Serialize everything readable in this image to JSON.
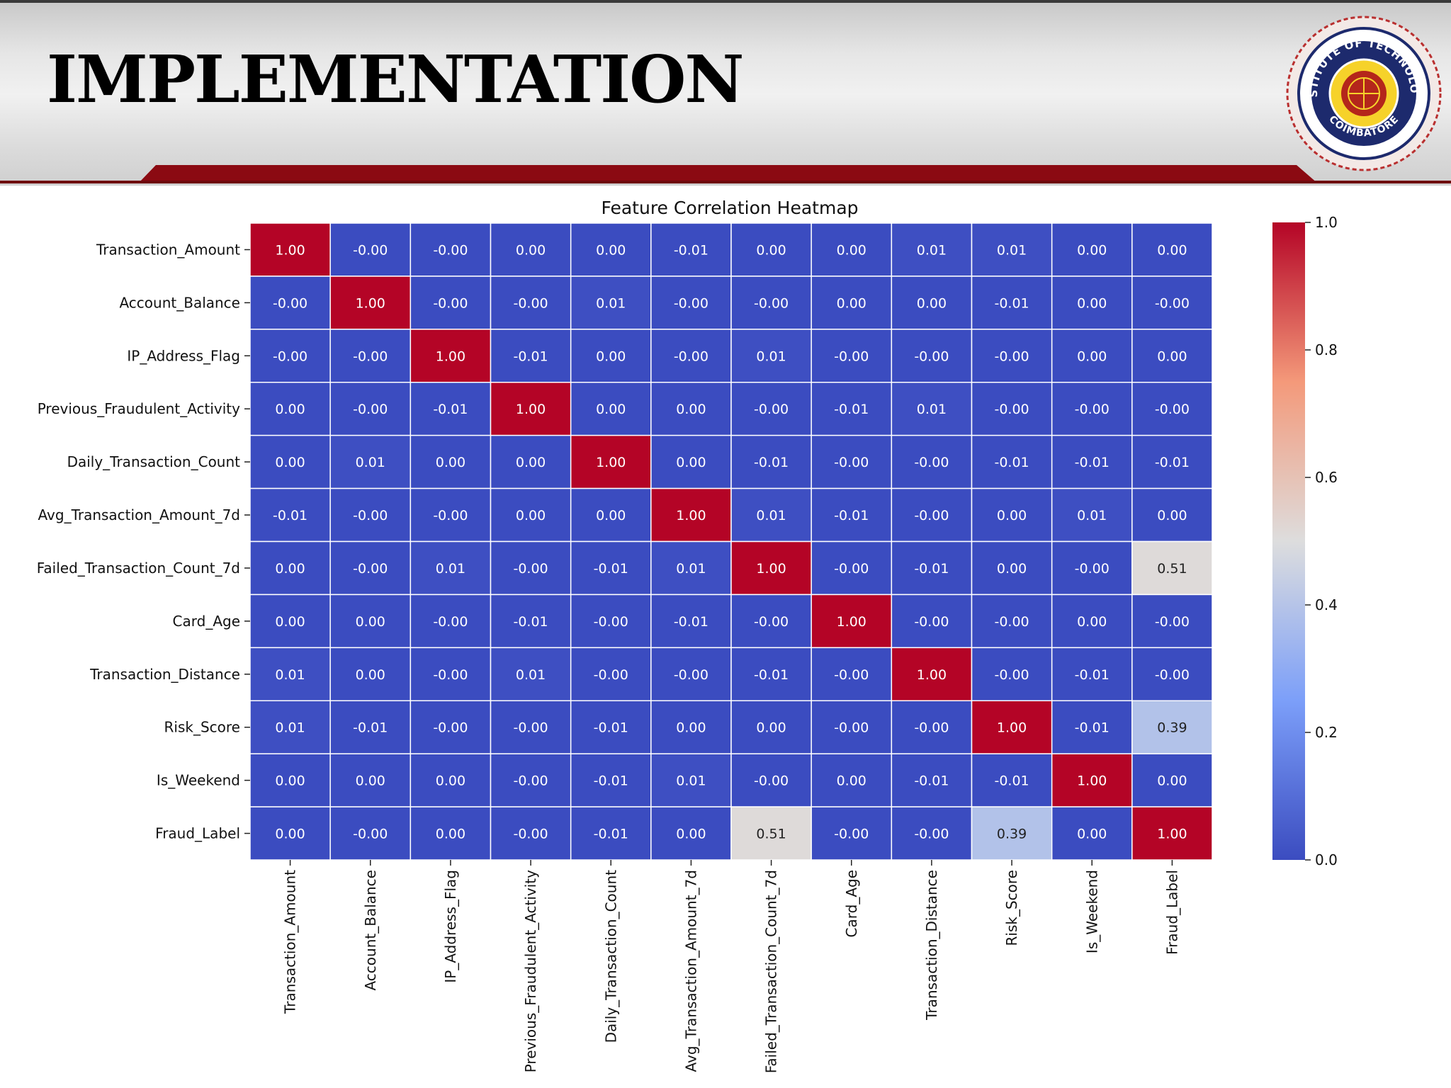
{
  "slide": {
    "title": "IMPLEMENTATION",
    "logo": {
      "icon": "institution-seal-icon",
      "text_top": "INSTITUTE OF TECHNOLOGY",
      "text_bottom": "COIMBATORE"
    },
    "colors": {
      "band": "#8b0a12",
      "header_grey": "#e4e4e4"
    }
  },
  "chart_data": {
    "type": "heatmap",
    "title": "Feature Correlation Heatmap",
    "labels": [
      "Transaction_Amount",
      "Account_Balance",
      "IP_Address_Flag",
      "Previous_Fraudulent_Activity",
      "Daily_Transaction_Count",
      "Avg_Transaction_Amount_7d",
      "Failed_Transaction_Count_7d",
      "Card_Age",
      "Transaction_Distance",
      "Risk_Score",
      "Is_Weekend",
      "Fraud_Label"
    ],
    "values": [
      [
        "1.00",
        "-0.00",
        "-0.00",
        "0.00",
        "0.00",
        "-0.01",
        "0.00",
        "0.00",
        "0.01",
        "0.01",
        "0.00",
        "0.00"
      ],
      [
        "-0.00",
        "1.00",
        "-0.00",
        "-0.00",
        "0.01",
        "-0.00",
        "-0.00",
        "0.00",
        "0.00",
        "-0.01",
        "0.00",
        "-0.00"
      ],
      [
        "-0.00",
        "-0.00",
        "1.00",
        "-0.01",
        "0.00",
        "-0.00",
        "0.01",
        "-0.00",
        "-0.00",
        "-0.00",
        "0.00",
        "0.00"
      ],
      [
        "0.00",
        "-0.00",
        "-0.01",
        "1.00",
        "0.00",
        "0.00",
        "-0.00",
        "-0.01",
        "0.01",
        "-0.00",
        "-0.00",
        "-0.00"
      ],
      [
        "0.00",
        "0.01",
        "0.00",
        "0.00",
        "1.00",
        "0.00",
        "-0.01",
        "-0.00",
        "-0.00",
        "-0.01",
        "-0.01",
        "-0.01"
      ],
      [
        "-0.01",
        "-0.00",
        "-0.00",
        "0.00",
        "0.00",
        "1.00",
        "0.01",
        "-0.01",
        "-0.00",
        "0.00",
        "0.01",
        "0.00"
      ],
      [
        "0.00",
        "-0.00",
        "0.01",
        "-0.00",
        "-0.01",
        "0.01",
        "1.00",
        "-0.00",
        "-0.01",
        "0.00",
        "-0.00",
        "0.51"
      ],
      [
        "0.00",
        "0.00",
        "-0.00",
        "-0.01",
        "-0.00",
        "-0.01",
        "-0.00",
        "1.00",
        "-0.00",
        "-0.00",
        "0.00",
        "-0.00"
      ],
      [
        "0.01",
        "0.00",
        "-0.00",
        "0.01",
        "-0.00",
        "-0.00",
        "-0.01",
        "-0.00",
        "1.00",
        "-0.00",
        "-0.01",
        "-0.00"
      ],
      [
        "0.01",
        "-0.01",
        "-0.00",
        "-0.00",
        "-0.01",
        "0.00",
        "0.00",
        "-0.00",
        "-0.00",
        "1.00",
        "-0.01",
        "0.39"
      ],
      [
        "0.00",
        "0.00",
        "0.00",
        "-0.00",
        "-0.01",
        "0.01",
        "-0.00",
        "0.00",
        "-0.01",
        "-0.01",
        "1.00",
        "0.00"
      ],
      [
        "0.00",
        "-0.00",
        "0.00",
        "-0.00",
        "-0.01",
        "0.00",
        "0.51",
        "-0.00",
        "-0.00",
        "0.39",
        "0.00",
        "1.00"
      ]
    ],
    "colorbar": {
      "ticks": [
        "0.0",
        "0.2",
        "0.4",
        "0.6",
        "0.8",
        "1.0"
      ],
      "range": [
        0,
        1
      ],
      "colormap": "coolwarm"
    }
  }
}
